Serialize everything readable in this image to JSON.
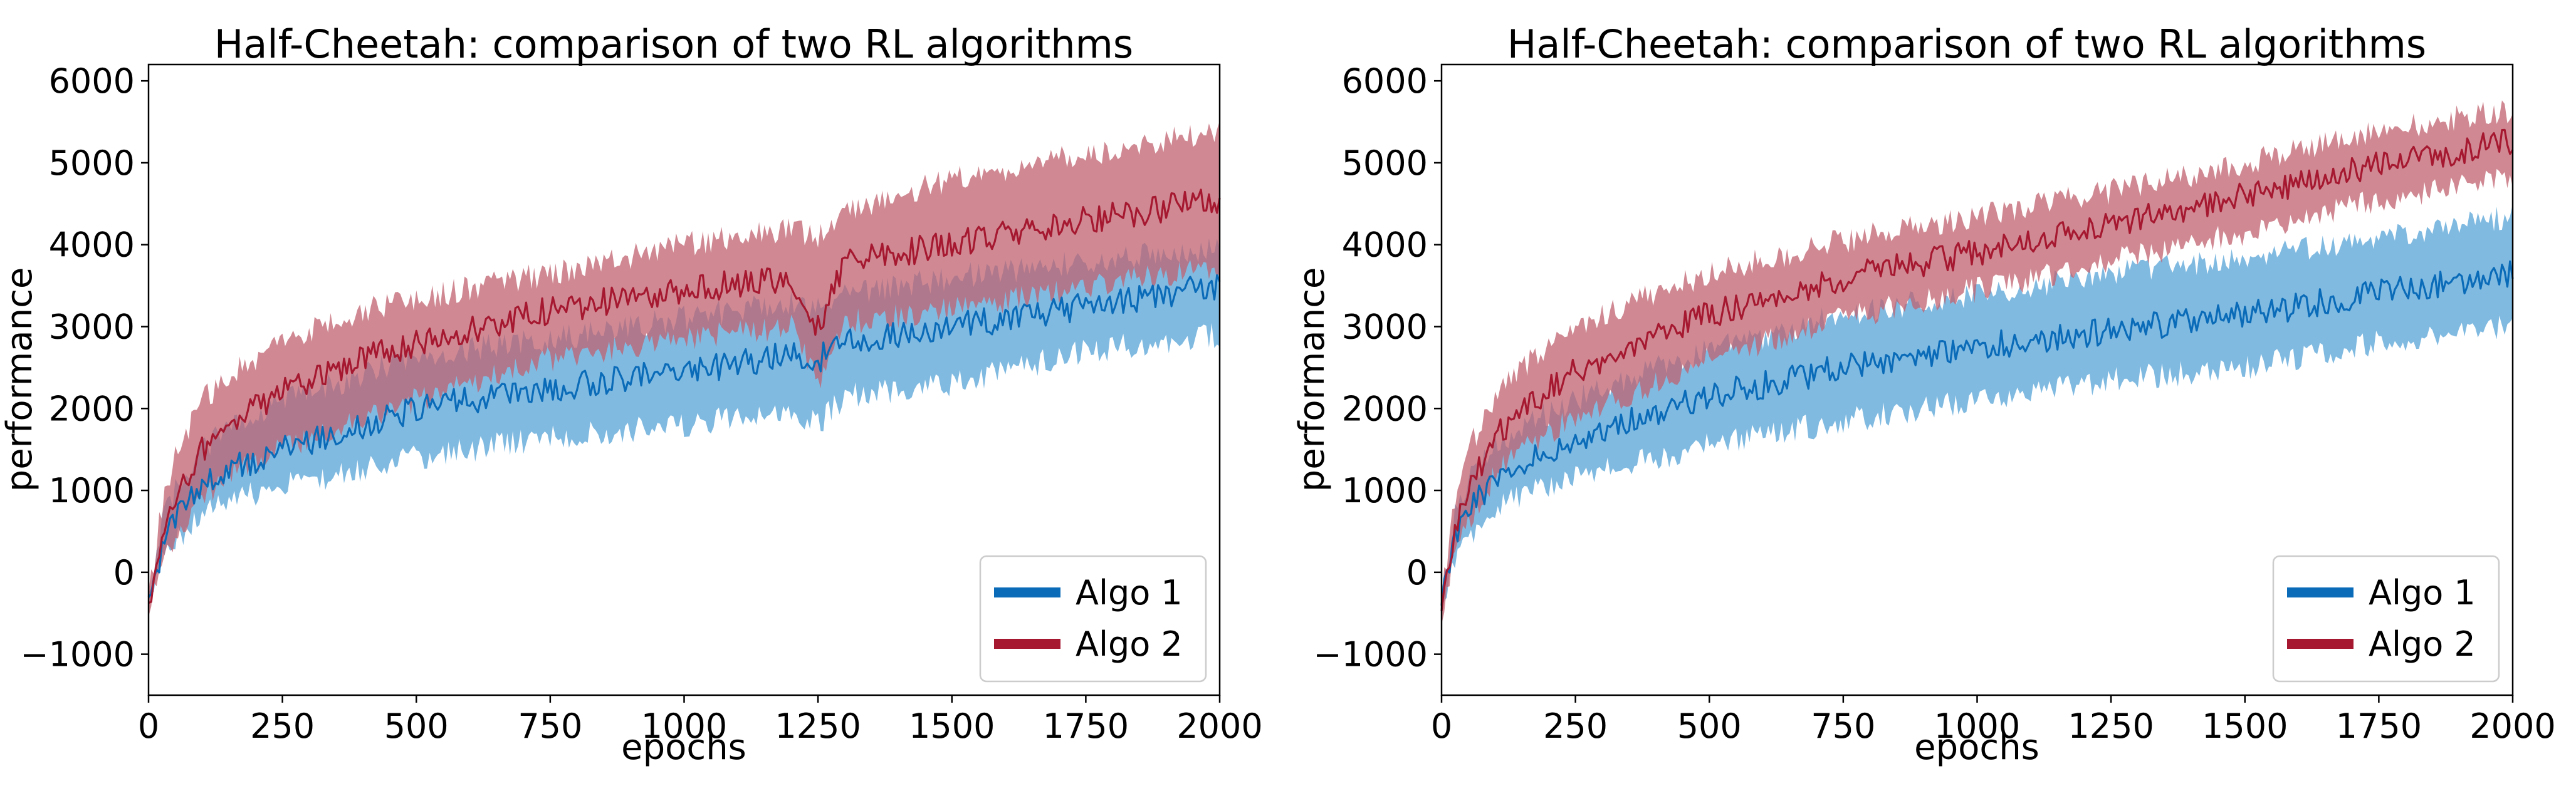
{
  "chart_data": [
    {
      "type": "line",
      "title": "Half-Cheetah: comparison of two RL algorithms",
      "xlabel": "epochs",
      "ylabel": "performance",
      "xlim": [
        0,
        2000
      ],
      "ylim": [
        -1500,
        6200
      ],
      "xticks": [
        0,
        250,
        500,
        750,
        1000,
        1250,
        1500,
        1750,
        2000
      ],
      "xtick_labels": [
        "0",
        "250",
        "500",
        "750",
        "1000",
        "1250",
        "1500",
        "1750",
        "2000"
      ],
      "yticks": [
        -1000,
        0,
        1000,
        2000,
        3000,
        4000,
        5000,
        6000
      ],
      "ytick_labels": [
        "−1000",
        "0",
        "1000",
        "2000",
        "3000",
        "4000",
        "5000",
        "6000"
      ],
      "legend_position": "lower-right",
      "grid": false,
      "shaded_band": "mean ± spread",
      "series": [
        {
          "name": "Algo 1",
          "color": "#0a6bb8",
          "fill_color": "#6aaedc",
          "x": [
            0,
            25,
            50,
            100,
            150,
            250,
            400,
            500,
            750,
            1000,
            1200,
            1250,
            1300,
            1500,
            1750,
            2000
          ],
          "mean": [
            -400,
            300,
            650,
            1050,
            1250,
            1500,
            1800,
            2000,
            2250,
            2450,
            2650,
            2600,
            2800,
            3000,
            3250,
            3500
          ],
          "upper": [
            -300,
            600,
            1000,
            1500,
            1800,
            2100,
            2400,
            2650,
            2850,
            3100,
            3300,
            3250,
            3400,
            3600,
            3800,
            3950
          ],
          "lower": [
            -500,
            100,
            400,
            700,
            900,
            1050,
            1250,
            1400,
            1650,
            1800,
            2000,
            1800,
            2150,
            2300,
            2700,
            2900
          ]
        },
        {
          "name": "Algo 2",
          "color": "#a51830",
          "fill_color": "#c0616f",
          "x": [
            0,
            25,
            50,
            100,
            150,
            250,
            400,
            500,
            750,
            1000,
            1200,
            1250,
            1300,
            1500,
            1750,
            2000
          ],
          "mean": [
            -400,
            400,
            900,
            1500,
            1800,
            2200,
            2600,
            2800,
            3200,
            3450,
            3600,
            3000,
            3800,
            4000,
            4300,
            4550
          ],
          "upper": [
            -300,
            800,
            1400,
            2100,
            2400,
            2800,
            3200,
            3350,
            3650,
            4000,
            4200,
            4100,
            4400,
            4800,
            5100,
            5400
          ],
          "lower": [
            -500,
            100,
            400,
            900,
            1200,
            1500,
            1900,
            2100,
            2600,
            2850,
            3000,
            2300,
            3050,
            3200,
            3500,
            3700
          ]
        }
      ]
    },
    {
      "type": "line",
      "title": "Half-Cheetah: comparison of two RL algorithms",
      "xlabel": "epochs",
      "ylabel": "performance",
      "xlim": [
        0,
        2000
      ],
      "ylim": [
        -1500,
        6200
      ],
      "xticks": [
        0,
        250,
        500,
        750,
        1000,
        1250,
        1500,
        1750,
        2000
      ],
      "xtick_labels": [
        "0",
        "250",
        "500",
        "750",
        "1000",
        "1250",
        "1500",
        "1750",
        "2000"
      ],
      "yticks": [
        -1000,
        0,
        1000,
        2000,
        3000,
        4000,
        5000,
        6000
      ],
      "ytick_labels": [
        "−1000",
        "0",
        "1000",
        "2000",
        "3000",
        "4000",
        "5000",
        "6000"
      ],
      "legend_position": "lower-right",
      "grid": false,
      "shaded_band": "mean ± spread",
      "series": [
        {
          "name": "Algo 1",
          "color": "#0a6bb8",
          "fill_color": "#6aaedc",
          "x": [
            0,
            25,
            50,
            100,
            150,
            250,
            400,
            500,
            750,
            1000,
            1250,
            1500,
            1750,
            2000
          ],
          "mean": [
            -400,
            400,
            750,
            1150,
            1350,
            1600,
            1950,
            2150,
            2500,
            2750,
            2950,
            3150,
            3400,
            3650
          ],
          "upper": [
            -300,
            700,
            1100,
            1550,
            1800,
            2100,
            2500,
            2700,
            3150,
            3400,
            3650,
            3850,
            4100,
            4350
          ],
          "lower": [
            -500,
            150,
            450,
            750,
            950,
            1150,
            1400,
            1550,
            1850,
            2100,
            2350,
            2500,
            2800,
            3000
          ]
        },
        {
          "name": "Algo 2",
          "color": "#a51830",
          "fill_color": "#c0616f",
          "x": [
            0,
            25,
            50,
            100,
            150,
            250,
            400,
            500,
            750,
            1000,
            1250,
            1500,
            1750,
            2000
          ],
          "mean": [
            -400,
            500,
            1000,
            1650,
            2000,
            2450,
            2900,
            3150,
            3600,
            3900,
            4250,
            4600,
            5000,
            5250
          ],
          "upper": [
            -300,
            900,
            1500,
            2150,
            2500,
            3000,
            3400,
            3650,
            4050,
            4350,
            4650,
            5000,
            5400,
            5650
          ],
          "lower": [
            -500,
            200,
            600,
            1200,
            1500,
            1900,
            2300,
            2600,
            3100,
            3450,
            3800,
            4150,
            4550,
            4800
          ]
        }
      ]
    }
  ]
}
